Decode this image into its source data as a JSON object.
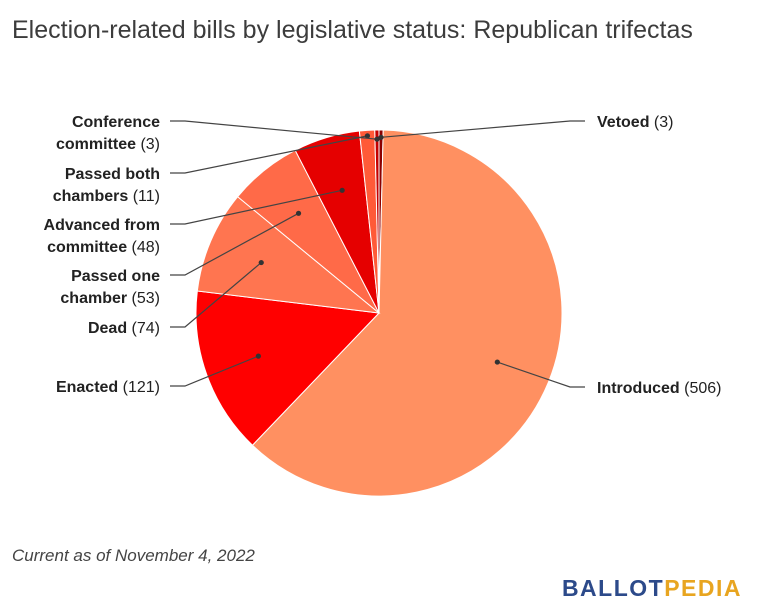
{
  "title": "Election-related bills by legislative status: Republican trifectas",
  "footer_note": "Current as of November 4, 2022",
  "logo": {
    "part1": "BALLOT",
    "part2": "PEDIA"
  },
  "chart_data": {
    "type": "pie",
    "title": "Election-related bills by legislative status: Republican trifectas",
    "slices": [
      {
        "label": "Vetoed",
        "value": 3,
        "color": "#8b0000"
      },
      {
        "label": "Introduced",
        "value": 506,
        "color": "#ff9061"
      },
      {
        "label": "Enacted",
        "value": 121,
        "color": "#ff0000"
      },
      {
        "label": "Dead",
        "value": 74,
        "color": "#ff7550"
      },
      {
        "label": "Passed one chamber",
        "value": 53,
        "color": "#ff6a48"
      },
      {
        "label": "Advanced from committee",
        "value": 48,
        "color": "#e50000"
      },
      {
        "label": "Passed both chambers",
        "value": 11,
        "color": "#ff5a38"
      },
      {
        "label": "Conference committee",
        "value": 3,
        "color": "#c40000"
      }
    ]
  }
}
